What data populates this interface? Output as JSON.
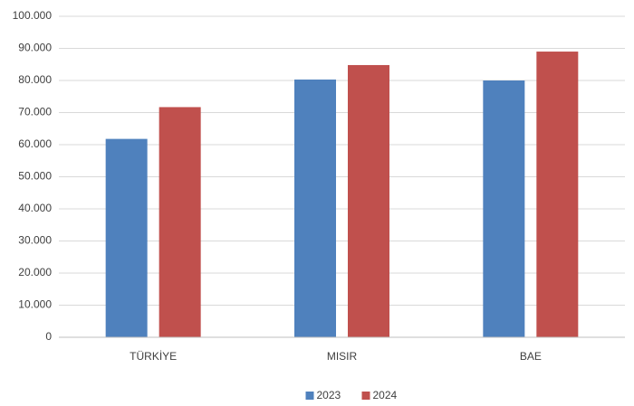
{
  "chart_data": {
    "type": "bar",
    "categories": [
      "TÜRKİYE",
      "MISIR",
      "BAE"
    ],
    "series": [
      {
        "name": "2023",
        "color": "#4f81bd",
        "values": [
          61800,
          80300,
          80000
        ]
      },
      {
        "name": "2024",
        "color": "#c0504d",
        "values": [
          71700,
          84800,
          89000
        ]
      }
    ],
    "ylim": [
      0,
      100000
    ],
    "yticks": [
      0,
      {
        "value": 10000,
        "label": "10.000"
      },
      {
        "value": 20000,
        "label": "20.000"
      },
      {
        "value": 30000,
        "label": "30.000"
      },
      {
        "value": 40000,
        "label": "40.000"
      },
      {
        "value": 50000,
        "label": "50.000"
      },
      {
        "value": 60000,
        "label": "60.000"
      },
      {
        "value": 70000,
        "label": "70.000"
      },
      {
        "value": 80000,
        "label": "80.000"
      },
      {
        "value": 90000,
        "label": "90.000"
      },
      {
        "value": 100000,
        "label": "100.000"
      }
    ],
    "grid": true,
    "legend": "bottom"
  }
}
